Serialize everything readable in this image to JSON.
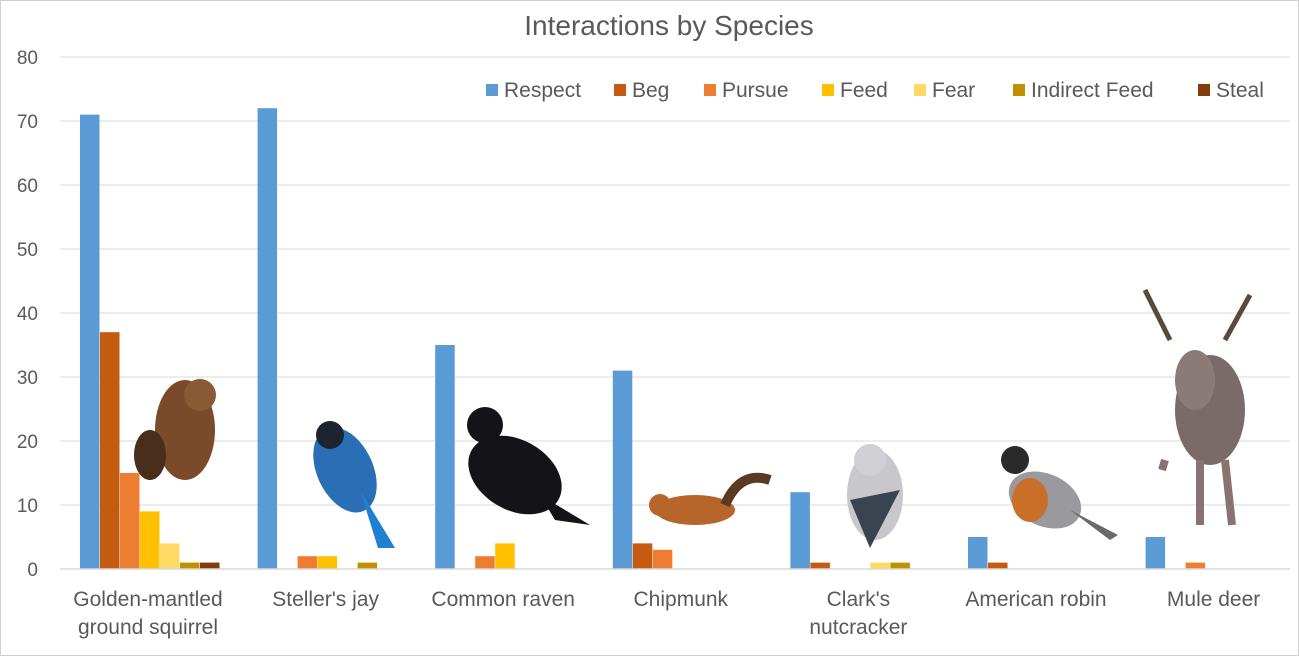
{
  "chart_data": {
    "type": "bar",
    "title": "Interactions by Species",
    "xlabel": "",
    "ylabel": "",
    "ylim": [
      0,
      80
    ],
    "yticks": [
      0,
      10,
      20,
      30,
      40,
      50,
      60,
      70,
      80
    ],
    "grid": true,
    "legend_position": "top-right",
    "categories": [
      "Golden-mantled ground squirrel",
      "Steller's jay",
      "Common raven",
      "Chipmunk",
      "Clark's nutcracker",
      "American robin",
      "Mule deer"
    ],
    "category_lines": [
      [
        "Golden-mantled",
        "ground squirrel"
      ],
      [
        "Steller's jay"
      ],
      [
        "Common raven"
      ],
      [
        "Chipmunk"
      ],
      [
        "Clark's",
        "nutcracker"
      ],
      [
        "American robin"
      ],
      [
        "Mule deer"
      ]
    ],
    "series": [
      {
        "name": "Respect",
        "color": "#5B9BD5",
        "values": [
          71,
          72,
          35,
          31,
          12,
          5,
          5
        ]
      },
      {
        "name": "Beg",
        "color": "#C55A11",
        "values": [
          37,
          0,
          0,
          4,
          1,
          1,
          0
        ]
      },
      {
        "name": "Pursue",
        "color": "#ED7D31",
        "values": [
          15,
          2,
          2,
          3,
          0,
          0,
          1
        ]
      },
      {
        "name": "Feed",
        "color": "#FFC000",
        "values": [
          9,
          2,
          4,
          0,
          0,
          0,
          0
        ]
      },
      {
        "name": "Fear",
        "color": "#FFD966",
        "values": [
          4,
          0,
          0,
          0,
          1,
          0,
          0
        ]
      },
      {
        "name": "Indirect Feed",
        "color": "#BF9000",
        "values": [
          1,
          1,
          0,
          0,
          1,
          0,
          0
        ]
      },
      {
        "name": "Steal",
        "color": "#843C0C",
        "values": [
          1,
          0,
          0,
          0,
          0,
          0,
          0
        ]
      }
    ]
  }
}
